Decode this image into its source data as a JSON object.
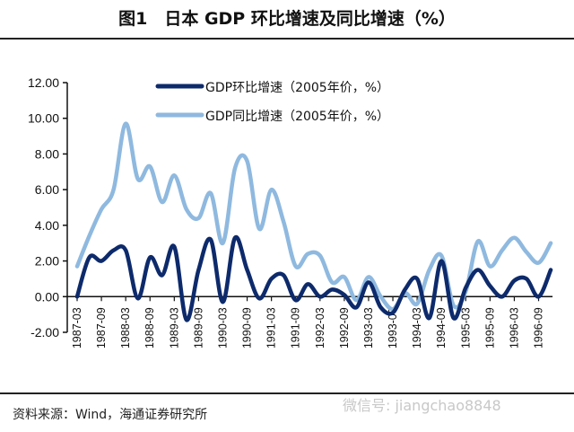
{
  "title": "图1　日本 GDP 环比增速及同比增速（%）",
  "source": "资料来源：Wind，海通证券研究所",
  "watermark": "微信号: jiangchao8848",
  "chart_data": {
    "type": "line",
    "title": "图1　日本 GDP 环比增速及同比增速（%）",
    "ylim": [
      -2,
      12
    ],
    "yticks": [
      "12.00",
      "10.00",
      "8.00",
      "6.00",
      "4.00",
      "2.00",
      "0.00",
      "-2.00"
    ],
    "ytick_values": [
      12,
      10,
      8,
      6,
      4,
      2,
      0,
      -2
    ],
    "xtick_labels": [
      "1987-03",
      "1987-09",
      "1988-03",
      "1988-09",
      "1989-03",
      "1989-09",
      "1990-03",
      "1990-09",
      "1991-03",
      "1991-09",
      "1992-03",
      "1992-09",
      "1993-03",
      "1993-09",
      "1994-03",
      "1994-09",
      "1995-03",
      "1995-09",
      "1996-03",
      "1996-09"
    ],
    "x_start": "1987-03",
    "x_end": "1996-12",
    "frequency": "quarterly",
    "legend_position": "top",
    "grid": false,
    "series": [
      {
        "name": "GDP环比增速（2005年价，%）",
        "color": "#0d2a6b",
        "values": [
          0.0,
          2.2,
          2.0,
          2.6,
          2.6,
          -0.1,
          2.2,
          1.2,
          2.8,
          -1.3,
          1.5,
          3.2,
          -0.3,
          3.3,
          1.5,
          -0.1,
          1.0,
          1.2,
          -0.2,
          0.7,
          0.0,
          0.4,
          0.1,
          -0.6,
          0.8,
          -0.6,
          -0.9,
          0.4,
          1.0,
          -1.2,
          2.0,
          -1.2,
          0.5,
          1.5,
          0.6,
          0.0,
          0.9,
          1.0,
          0.0,
          1.5
        ]
      },
      {
        "name": "GDP同比增速（2005年价，%）",
        "color": "#8fb9df",
        "values": [
          1.7,
          3.4,
          4.9,
          6.0,
          9.7,
          6.6,
          7.3,
          5.3,
          6.8,
          4.9,
          4.4,
          5.8,
          3.0,
          7.2,
          7.6,
          3.8,
          6.0,
          4.2,
          1.7,
          2.4,
          2.3,
          0.8,
          1.1,
          -0.2,
          1.1,
          0.0,
          -0.7,
          0.2,
          -0.4,
          1.5,
          2.3,
          -0.5,
          0.3,
          3.1,
          1.7,
          2.6,
          3.3,
          2.5,
          1.9,
          3.0
        ]
      }
    ]
  }
}
